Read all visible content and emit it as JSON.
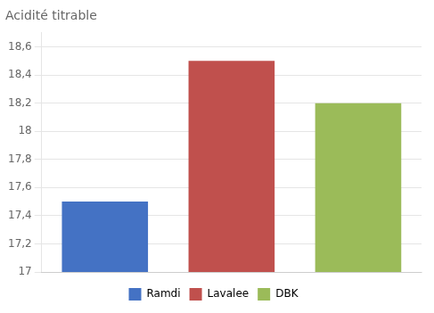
{
  "chart_data": {
    "type": "bar",
    "title": "Acidité titrable",
    "categories": [
      "Ramdi",
      "Lavalee",
      "DBK"
    ],
    "values": [
      17.5,
      18.5,
      18.2
    ],
    "colors": [
      "#4472C4",
      "#C0504D",
      "#9BBB59"
    ],
    "ylim": [
      17,
      18.7
    ],
    "yticks": [
      17,
      {
        "value": 17.2,
        "label": "17,2"
      },
      {
        "value": 17.4,
        "label": "17,4"
      },
      {
        "value": 17.6,
        "label": "17,6"
      },
      {
        "value": 17.8,
        "label": "17,8"
      },
      18,
      {
        "value": 18.2,
        "label": "18,2"
      },
      {
        "value": 18.4,
        "label": "18,4"
      },
      {
        "value": 18.6,
        "label": "18,6"
      }
    ],
    "grid": true,
    "legend": "bottom",
    "tick_labels": "y"
  }
}
